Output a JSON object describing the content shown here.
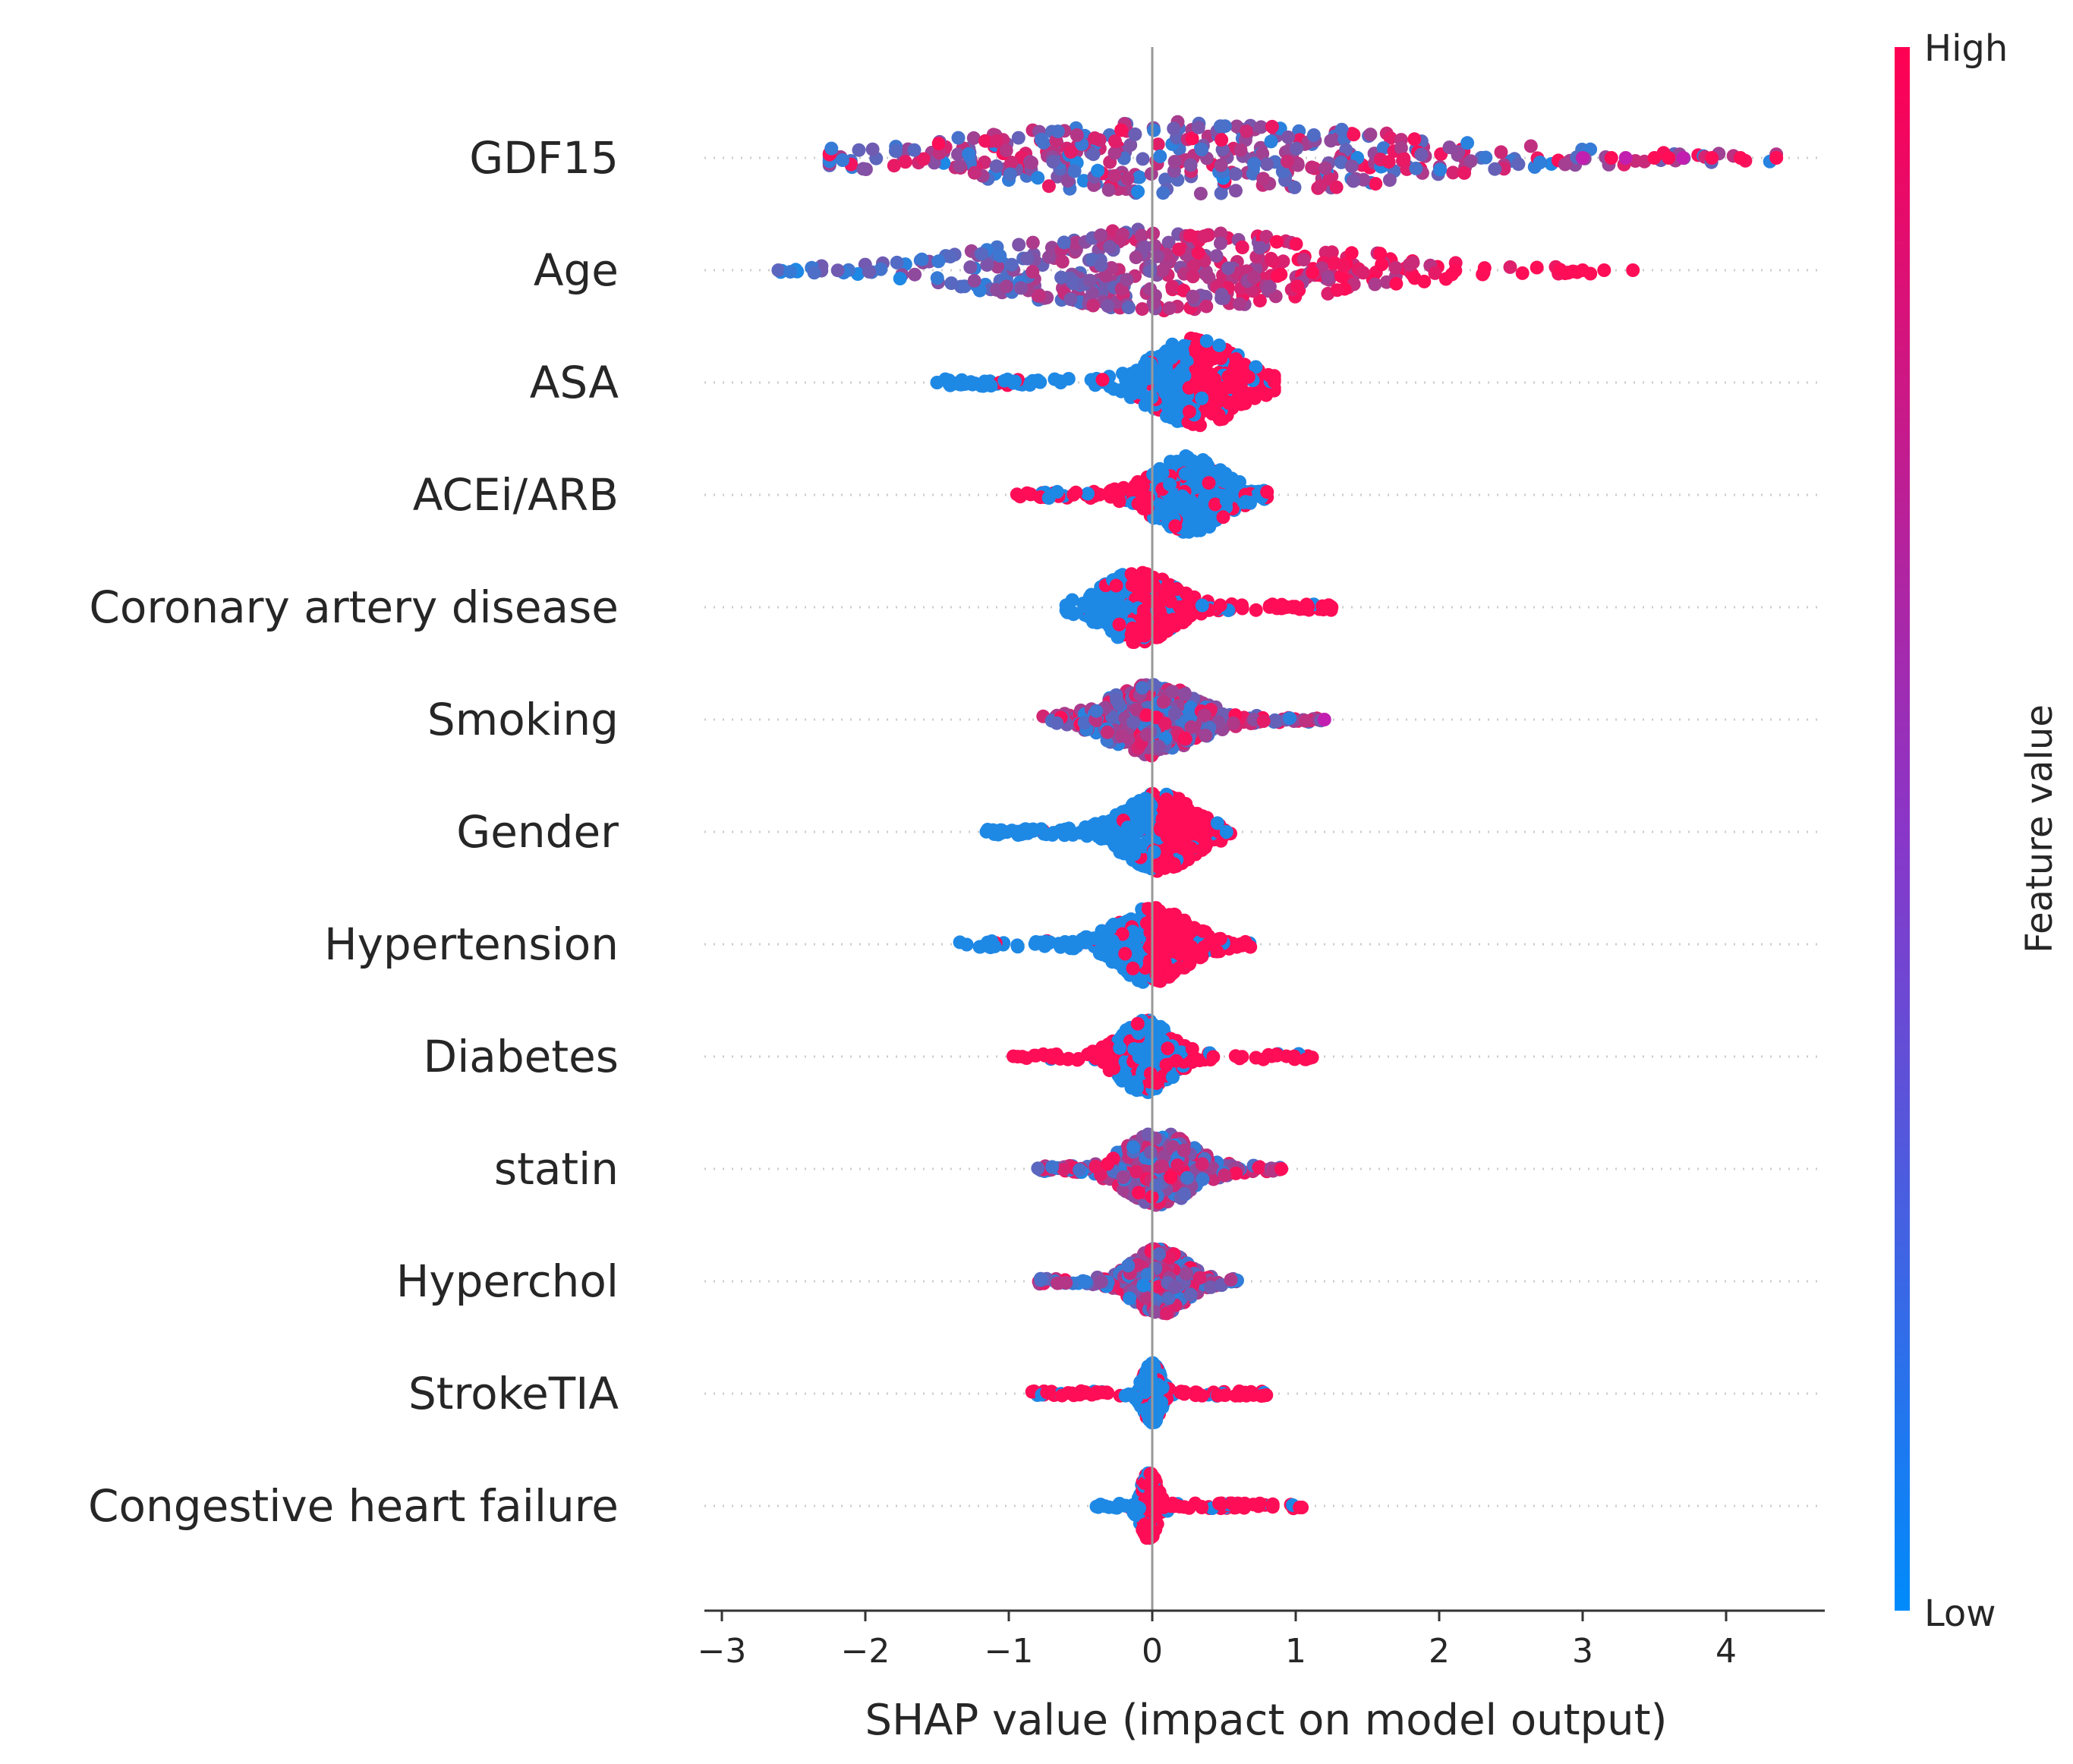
{
  "chart_data": {
    "type": "scatter",
    "subtype": "shap-beeswarm",
    "title": "",
    "xlabel": "SHAP value (impact on model output)",
    "ylabel": "",
    "xlim": [
      -3.1,
      4.7
    ],
    "xticks": [
      -3,
      -2,
      -1,
      0,
      1,
      2,
      3,
      4
    ],
    "xtick_labels": [
      "−3",
      "−2",
      "−1",
      "0",
      "1",
      "2",
      "3",
      "4"
    ],
    "grid": false,
    "colorbar": {
      "title": "Feature value",
      "high_label": "High",
      "low_label": "Low",
      "high_color": "#ff0d57",
      "low_color": "#1e88e5",
      "mid_color": "#a02bba",
      "placement": "right"
    },
    "features": [
      {
        "name": "GDF15",
        "min": -2.25,
        "max": 4.35,
        "peak": 0.3,
        "spread": 1.3,
        "height": 0.65,
        "color_pattern": "mixed",
        "outliers": [
          3.0,
          3.2,
          3.3,
          3.5,
          3.6,
          3.7,
          3.9,
          4.1,
          4.35
        ]
      },
      {
        "name": "Age",
        "min": -2.75,
        "max": 3.35,
        "peak": 0.1,
        "spread": 0.9,
        "height": 0.75,
        "color_pattern": "increasing",
        "outliers": [
          3.0,
          3.15,
          3.35
        ]
      },
      {
        "name": "ASA",
        "min": -1.5,
        "max": 0.85,
        "peak": 0.3,
        "spread": 0.25,
        "height": 0.8,
        "color_pattern": "binary-high-right",
        "outliers": [
          -1.5
        ]
      },
      {
        "name": "ACEi/ARB",
        "min": -0.95,
        "max": 0.8,
        "peak": 0.25,
        "spread": 0.2,
        "height": 0.7,
        "color_pattern": "binary-high-left",
        "outliers": []
      },
      {
        "name": "Coronary artery disease",
        "min": -0.6,
        "max": 1.25,
        "peak": -0.1,
        "spread": 0.2,
        "height": 0.65,
        "color_pattern": "binary-high-right",
        "outliers": [
          1.25
        ]
      },
      {
        "name": "Smoking",
        "min": -0.8,
        "max": 1.2,
        "peak": 0.0,
        "spread": 0.25,
        "height": 0.65,
        "color_pattern": "mixed",
        "outliers": [
          1.2
        ]
      },
      {
        "name": "Gender",
        "min": -1.2,
        "max": 0.55,
        "peak": 0.05,
        "spread": 0.2,
        "height": 0.7,
        "color_pattern": "binary-high-right",
        "outliers": []
      },
      {
        "name": "Hypertension",
        "min": -1.35,
        "max": 0.7,
        "peak": 0.0,
        "spread": 0.2,
        "height": 0.7,
        "color_pattern": "binary-high-right",
        "outliers": []
      },
      {
        "name": "Diabetes",
        "min": -1.0,
        "max": 1.15,
        "peak": -0.05,
        "spread": 0.15,
        "height": 0.65,
        "color_pattern": "binary-high-both-tails",
        "outliers": []
      },
      {
        "name": "statin",
        "min": -0.8,
        "max": 0.9,
        "peak": 0.05,
        "spread": 0.2,
        "height": 0.65,
        "color_pattern": "mixed",
        "outliers": [
          0.9
        ]
      },
      {
        "name": "Hyperchol",
        "min": -0.8,
        "max": 0.6,
        "peak": 0.05,
        "spread": 0.15,
        "height": 0.6,
        "color_pattern": "mixed",
        "outliers": []
      },
      {
        "name": "StrokeTIA",
        "min": -0.85,
        "max": 0.8,
        "peak": 0.0,
        "spread": 0.05,
        "height": 0.55,
        "color_pattern": "binary-high-both-tails",
        "outliers": []
      },
      {
        "name": "Congestive heart failure",
        "min": -0.4,
        "max": 1.05,
        "peak": -0.02,
        "spread": 0.03,
        "height": 0.6,
        "color_pattern": "binary-high-right",
        "outliers": []
      }
    ]
  }
}
